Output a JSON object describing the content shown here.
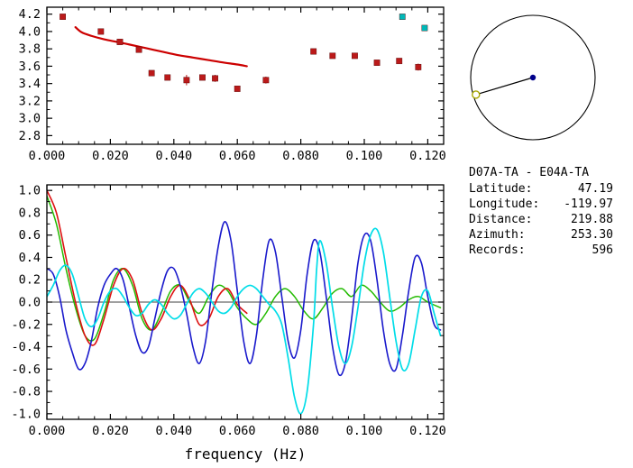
{
  "info": {
    "title": "D07A-TA - E04A-TA",
    "rows": [
      {
        "label": "Latitude:",
        "value": "47.19"
      },
      {
        "label": "Longitude:",
        "value": "-119.97"
      },
      {
        "label": "Distance:",
        "value": "219.88"
      },
      {
        "label": "Azimuth:",
        "value": "253.30"
      },
      {
        "label": "Records:",
        "value": "596"
      }
    ]
  },
  "azimuth_diagram": {
    "azimuth_deg": 253.3,
    "circle_color": "#000000",
    "center_dot_color": "#00008b",
    "end_marker_color": "#a8a800"
  },
  "chart_data": [
    {
      "id": "dispersion",
      "type": "scatter",
      "title": "",
      "xlabel": "",
      "ylabel": "",
      "xlim": [
        0,
        0.125
      ],
      "ylim": [
        2.7,
        4.28
      ],
      "grid": false,
      "legend": "none",
      "xticks": [
        0,
        0.02,
        0.04,
        0.06,
        0.08,
        0.1,
        0.12
      ],
      "xtick_labels": [
        "0.000",
        "0.020",
        "0.040",
        "0.060",
        "0.080",
        "0.100",
        "0.120"
      ],
      "yticks": [
        2.8,
        3.0,
        3.2,
        3.4,
        3.6,
        3.8,
        4.0,
        4.2
      ],
      "ytick_labels": [
        "2.8",
        "3.0",
        "3.2",
        "3.4",
        "3.6",
        "3.8",
        "4.0",
        "4.2"
      ],
      "series": [
        {
          "name": "model-dispersion-curve",
          "type": "line",
          "color": "#cc0000",
          "width": 2.2,
          "points": [
            [
              0.009,
              4.05
            ],
            [
              0.011,
              3.99
            ],
            [
              0.014,
              3.95
            ],
            [
              0.018,
              3.91
            ],
            [
              0.022,
              3.88
            ],
            [
              0.026,
              3.85
            ],
            [
              0.031,
              3.81
            ],
            [
              0.036,
              3.77
            ],
            [
              0.041,
              3.73
            ],
            [
              0.046,
              3.7
            ],
            [
              0.051,
              3.67
            ],
            [
              0.056,
              3.64
            ],
            [
              0.06,
              3.62
            ],
            [
              0.063,
              3.6
            ]
          ]
        },
        {
          "name": "measured-dispersion",
          "type": "scatter",
          "color": "#bb1a1a",
          "marker": "square",
          "points": [
            [
              0.005,
              4.17,
              0.02
            ],
            [
              0.017,
              4.0,
              0.02
            ],
            [
              0.023,
              3.88,
              0.02
            ],
            [
              0.029,
              3.79,
              0.03
            ],
            [
              0.033,
              3.52,
              0.03
            ],
            [
              0.038,
              3.47,
              0.03
            ],
            [
              0.044,
              3.44,
              0.06
            ],
            [
              0.049,
              3.47,
              0.03
            ],
            [
              0.053,
              3.46,
              0.04
            ],
            [
              0.06,
              3.34,
              0.03
            ],
            [
              0.069,
              3.44,
              0.04
            ],
            [
              0.084,
              3.77,
              0.02
            ],
            [
              0.09,
              3.72,
              0.03
            ],
            [
              0.097,
              3.72,
              0.02
            ],
            [
              0.104,
              3.64,
              0.03
            ],
            [
              0.111,
              3.66,
              0.02
            ],
            [
              0.117,
              3.59,
              0.04
            ]
          ]
        },
        {
          "name": "high-frequency-points",
          "type": "scatter",
          "color": "#00b8b8",
          "marker": "square",
          "points": [
            [
              0.112,
              4.17,
              0
            ],
            [
              0.119,
              4.04,
              0
            ]
          ]
        }
      ]
    },
    {
      "id": "correlation",
      "type": "line",
      "title": "",
      "xlabel": "frequency (Hz)",
      "ylabel": "",
      "xlim": [
        0,
        0.125
      ],
      "ylim": [
        -1.05,
        1.05
      ],
      "grid": false,
      "legend": "none",
      "zero_line": true,
      "xticks": [
        0,
        0.02,
        0.04,
        0.06,
        0.08,
        0.1,
        0.12
      ],
      "xtick_labels": [
        "0.000",
        "0.020",
        "0.040",
        "0.060",
        "0.080",
        "0.100",
        "0.120"
      ],
      "yticks": [
        1.0,
        0.8,
        0.6,
        0.4,
        0.2,
        0.0,
        -0.2,
        -0.4,
        -0.6,
        -0.8,
        -1.0
      ],
      "ytick_labels": [
        "1.0",
        "0.8",
        "0.6",
        "0.4",
        "0.2",
        "0.0",
        "-0.2",
        "-0.4",
        "-0.6",
        "-0.8",
        "-1.0"
      ],
      "series": [
        {
          "name": "green-trace",
          "type": "line",
          "color": "#22bb00",
          "width": 1.5,
          "points": [
            [
              0,
              0.95
            ],
            [
              0.003,
              0.7
            ],
            [
              0.006,
              0.3
            ],
            [
              0.009,
              -0.05
            ],
            [
              0.012,
              -0.3
            ],
            [
              0.015,
              -0.33
            ],
            [
              0.018,
              -0.1
            ],
            [
              0.021,
              0.2
            ],
            [
              0.024,
              0.3
            ],
            [
              0.027,
              0.15
            ],
            [
              0.03,
              -0.15
            ],
            [
              0.033,
              -0.25
            ],
            [
              0.036,
              -0.1
            ],
            [
              0.039,
              0.1
            ],
            [
              0.042,
              0.15
            ],
            [
              0.045,
              0.0
            ],
            [
              0.048,
              -0.1
            ],
            [
              0.051,
              0.05
            ],
            [
              0.054,
              0.15
            ],
            [
              0.057,
              0.1
            ],
            [
              0.06,
              -0.05
            ],
            [
              0.063,
              -0.15
            ],
            [
              0.066,
              -0.2
            ],
            [
              0.069,
              -0.1
            ],
            [
              0.072,
              0.05
            ],
            [
              0.075,
              0.12
            ],
            [
              0.078,
              0.05
            ],
            [
              0.081,
              -0.08
            ],
            [
              0.084,
              -0.15
            ],
            [
              0.087,
              -0.05
            ],
            [
              0.09,
              0.08
            ],
            [
              0.093,
              0.12
            ],
            [
              0.096,
              0.05
            ],
            [
              0.099,
              0.15
            ],
            [
              0.102,
              0.1
            ],
            [
              0.105,
              0.0
            ],
            [
              0.108,
              -0.08
            ],
            [
              0.111,
              -0.05
            ],
            [
              0.114,
              0.02
            ],
            [
              0.117,
              0.05
            ],
            [
              0.12,
              0.0
            ],
            [
              0.124,
              -0.05
            ]
          ]
        },
        {
          "name": "red-trace",
          "type": "line",
          "color": "#dd1111",
          "width": 1.6,
          "points": [
            [
              0,
              1.0
            ],
            [
              0.003,
              0.8
            ],
            [
              0.006,
              0.4
            ],
            [
              0.009,
              0.0
            ],
            [
              0.012,
              -0.3
            ],
            [
              0.015,
              -0.38
            ],
            [
              0.018,
              -0.15
            ],
            [
              0.021,
              0.15
            ],
            [
              0.024,
              0.3
            ],
            [
              0.027,
              0.2
            ],
            [
              0.03,
              -0.1
            ],
            [
              0.033,
              -0.25
            ],
            [
              0.036,
              -0.15
            ],
            [
              0.039,
              0.05
            ],
            [
              0.042,
              0.15
            ],
            [
              0.045,
              0.02
            ],
            [
              0.048,
              -0.2
            ],
            [
              0.051,
              -0.15
            ],
            [
              0.054,
              0.05
            ],
            [
              0.057,
              0.12
            ],
            [
              0.06,
              -0.02
            ],
            [
              0.063,
              -0.1
            ]
          ]
        },
        {
          "name": "blue-trace",
          "type": "line",
          "color": "#1a1acc",
          "width": 1.6,
          "points": [
            [
              0,
              0.3
            ],
            [
              0.002,
              0.25
            ],
            [
              0.004,
              0.05
            ],
            [
              0.006,
              -0.25
            ],
            [
              0.008,
              -0.45
            ],
            [
              0.01,
              -0.6
            ],
            [
              0.012,
              -0.55
            ],
            [
              0.014,
              -0.35
            ],
            [
              0.016,
              -0.05
            ],
            [
              0.018,
              0.15
            ],
            [
              0.02,
              0.25
            ],
            [
              0.022,
              0.3
            ],
            [
              0.024,
              0.2
            ],
            [
              0.026,
              -0.05
            ],
            [
              0.028,
              -0.3
            ],
            [
              0.03,
              -0.45
            ],
            [
              0.032,
              -0.4
            ],
            [
              0.034,
              -0.15
            ],
            [
              0.036,
              0.1
            ],
            [
              0.038,
              0.28
            ],
            [
              0.04,
              0.3
            ],
            [
              0.042,
              0.15
            ],
            [
              0.044,
              -0.1
            ],
            [
              0.046,
              -0.4
            ],
            [
              0.048,
              -0.55
            ],
            [
              0.05,
              -0.35
            ],
            [
              0.052,
              0.1
            ],
            [
              0.054,
              0.5
            ],
            [
              0.056,
              0.72
            ],
            [
              0.058,
              0.55
            ],
            [
              0.06,
              0.1
            ],
            [
              0.062,
              -0.35
            ],
            [
              0.064,
              -0.55
            ],
            [
              0.066,
              -0.3
            ],
            [
              0.068,
              0.2
            ],
            [
              0.07,
              0.55
            ],
            [
              0.072,
              0.45
            ],
            [
              0.074,
              0.05
            ],
            [
              0.076,
              -0.35
            ],
            [
              0.078,
              -0.5
            ],
            [
              0.08,
              -0.25
            ],
            [
              0.082,
              0.25
            ],
            [
              0.084,
              0.55
            ],
            [
              0.086,
              0.45
            ],
            [
              0.088,
              0.05
            ],
            [
              0.09,
              -0.4
            ],
            [
              0.092,
              -0.65
            ],
            [
              0.094,
              -0.55
            ],
            [
              0.096,
              -0.15
            ],
            [
              0.098,
              0.35
            ],
            [
              0.1,
              0.6
            ],
            [
              0.102,
              0.55
            ],
            [
              0.104,
              0.2
            ],
            [
              0.106,
              -0.25
            ],
            [
              0.108,
              -0.55
            ],
            [
              0.11,
              -0.6
            ],
            [
              0.112,
              -0.3
            ],
            [
              0.114,
              0.1
            ],
            [
              0.116,
              0.4
            ],
            [
              0.118,
              0.35
            ],
            [
              0.12,
              0.05
            ],
            [
              0.122,
              -0.2
            ],
            [
              0.124,
              -0.25
            ]
          ]
        },
        {
          "name": "cyan-trace",
          "type": "line",
          "color": "#00dde8",
          "width": 1.7,
          "points": [
            [
              0,
              0.05
            ],
            [
              0.002,
              0.15
            ],
            [
              0.004,
              0.28
            ],
            [
              0.006,
              0.33
            ],
            [
              0.008,
              0.25
            ],
            [
              0.01,
              0.05
            ],
            [
              0.012,
              -0.15
            ],
            [
              0.014,
              -0.22
            ],
            [
              0.016,
              -0.15
            ],
            [
              0.018,
              0.0
            ],
            [
              0.02,
              0.1
            ],
            [
              0.022,
              0.12
            ],
            [
              0.024,
              0.05
            ],
            [
              0.026,
              -0.05
            ],
            [
              0.028,
              -0.12
            ],
            [
              0.03,
              -0.1
            ],
            [
              0.032,
              -0.02
            ],
            [
              0.034,
              0.02
            ],
            [
              0.036,
              -0.02
            ],
            [
              0.038,
              -0.1
            ],
            [
              0.04,
              -0.15
            ],
            [
              0.042,
              -0.12
            ],
            [
              0.044,
              -0.02
            ],
            [
              0.046,
              0.08
            ],
            [
              0.048,
              0.12
            ],
            [
              0.05,
              0.08
            ],
            [
              0.052,
              0.0
            ],
            [
              0.054,
              -0.08
            ],
            [
              0.056,
              -0.1
            ],
            [
              0.058,
              -0.05
            ],
            [
              0.06,
              0.05
            ],
            [
              0.062,
              0.12
            ],
            [
              0.064,
              0.15
            ],
            [
              0.066,
              0.12
            ],
            [
              0.068,
              0.05
            ],
            [
              0.07,
              -0.02
            ],
            [
              0.072,
              -0.08
            ],
            [
              0.074,
              -0.2
            ],
            [
              0.076,
              -0.5
            ],
            [
              0.078,
              -0.85
            ],
            [
              0.08,
              -1.0
            ],
            [
              0.082,
              -0.8
            ],
            [
              0.084,
              -0.2
            ],
            [
              0.085,
              0.3
            ],
            [
              0.086,
              0.55
            ],
            [
              0.088,
              0.35
            ],
            [
              0.09,
              -0.05
            ],
            [
              0.092,
              -0.4
            ],
            [
              0.094,
              -0.55
            ],
            [
              0.096,
              -0.4
            ],
            [
              0.098,
              -0.05
            ],
            [
              0.1,
              0.35
            ],
            [
              0.102,
              0.6
            ],
            [
              0.104,
              0.65
            ],
            [
              0.106,
              0.45
            ],
            [
              0.108,
              0.05
            ],
            [
              0.11,
              -0.35
            ],
            [
              0.112,
              -0.6
            ],
            [
              0.114,
              -0.55
            ],
            [
              0.116,
              -0.25
            ],
            [
              0.118,
              0.05
            ],
            [
              0.12,
              0.1
            ],
            [
              0.122,
              -0.1
            ],
            [
              0.124,
              -0.3
            ]
          ]
        }
      ]
    }
  ]
}
